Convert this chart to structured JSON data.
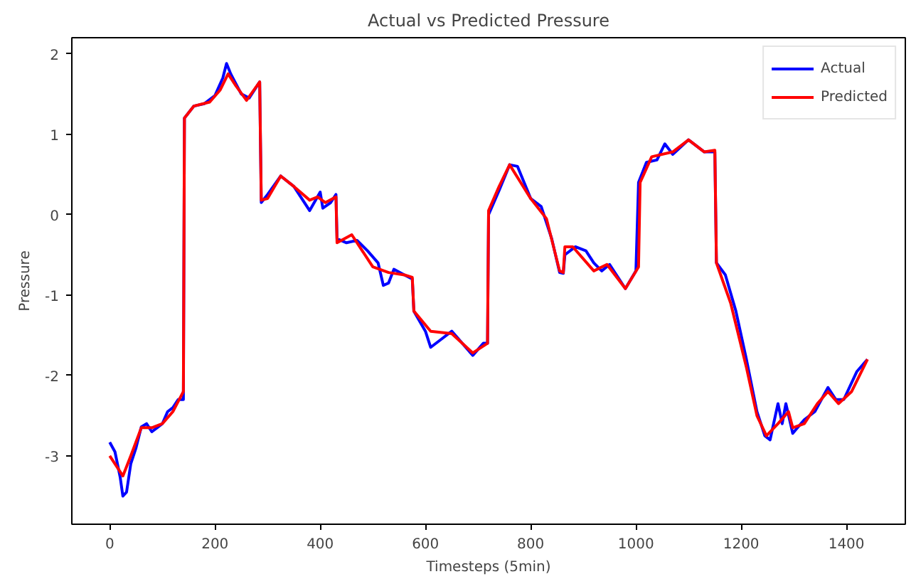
{
  "chart_data": {
    "type": "line",
    "title": "Actual vs Predicted Pressure",
    "xlabel": "Timesteps (5min)",
    "ylabel": "Pressure",
    "xlim": [
      -72,
      1512
    ],
    "ylim": [
      -3.85,
      2.2
    ],
    "xticks": [
      0,
      200,
      400,
      600,
      800,
      1000,
      1200,
      1400
    ],
    "yticks": [
      -3,
      -2,
      -1,
      0,
      1,
      2
    ],
    "grid": false,
    "legend": "top right",
    "line_style": "solid",
    "series": [
      {
        "name": "Actual",
        "color": "#0000ff",
        "x": [
          0,
          10,
          20,
          25,
          32,
          40,
          50,
          60,
          70,
          80,
          90,
          100,
          110,
          120,
          130,
          140,
          142,
          160,
          180,
          200,
          215,
          222,
          230,
          250,
          265,
          285,
          288,
          300,
          325,
          350,
          380,
          400,
          405,
          420,
          430,
          432,
          450,
          470,
          490,
          510,
          520,
          530,
          540,
          560,
          575,
          578,
          600,
          610,
          630,
          650,
          670,
          690,
          710,
          718,
          720,
          740,
          760,
          775,
          800,
          820,
          840,
          855,
          862,
          865,
          885,
          905,
          920,
          935,
          950,
          980,
          1000,
          1005,
          1020,
          1040,
          1055,
          1070,
          1100,
          1130,
          1150,
          1153,
          1170,
          1190,
          1210,
          1230,
          1245,
          1255,
          1270,
          1278,
          1285,
          1298,
          1320,
          1340,
          1365,
          1380,
          1395,
          1420,
          1440
        ],
        "values": [
          -2.83,
          -2.95,
          -3.27,
          -3.5,
          -3.45,
          -3.1,
          -2.9,
          -2.64,
          -2.6,
          -2.7,
          -2.65,
          -2.6,
          -2.45,
          -2.4,
          -2.3,
          -2.3,
          1.2,
          1.35,
          1.38,
          1.48,
          1.7,
          1.88,
          1.75,
          1.5,
          1.45,
          1.65,
          0.15,
          0.25,
          0.48,
          0.35,
          0.05,
          0.28,
          0.08,
          0.15,
          0.25,
          -0.3,
          -0.35,
          -0.32,
          -0.45,
          -0.6,
          -0.88,
          -0.85,
          -0.68,
          -0.75,
          -0.8,
          -1.2,
          -1.45,
          -1.65,
          -1.55,
          -1.45,
          -1.6,
          -1.75,
          -1.6,
          -1.6,
          0.0,
          0.3,
          0.62,
          0.6,
          0.2,
          0.1,
          -0.3,
          -0.72,
          -0.73,
          -0.5,
          -0.4,
          -0.45,
          -0.6,
          -0.7,
          -0.62,
          -0.92,
          -0.7,
          0.4,
          0.65,
          0.68,
          0.88,
          0.75,
          0.93,
          0.78,
          0.78,
          -0.6,
          -0.75,
          -1.2,
          -1.8,
          -2.45,
          -2.75,
          -2.8,
          -2.35,
          -2.6,
          -2.35,
          -2.72,
          -2.55,
          -2.45,
          -2.15,
          -2.3,
          -2.3,
          -1.95,
          -1.8
        ]
      },
      {
        "name": "Predicted",
        "color": "#ff0000",
        "x": [
          0,
          10,
          25,
          40,
          60,
          80,
          100,
          120,
          140,
          142,
          160,
          190,
          210,
          225,
          240,
          260,
          285,
          288,
          300,
          325,
          350,
          380,
          395,
          410,
          430,
          432,
          460,
          480,
          500,
          530,
          560,
          575,
          578,
          610,
          650,
          690,
          718,
          720,
          740,
          760,
          800,
          830,
          855,
          862,
          865,
          880,
          920,
          945,
          980,
          1005,
          1008,
          1030,
          1070,
          1100,
          1130,
          1150,
          1153,
          1180,
          1210,
          1230,
          1248,
          1270,
          1290,
          1298,
          1320,
          1345,
          1365,
          1385,
          1410,
          1440
        ],
        "values": [
          -3.0,
          -3.1,
          -3.25,
          -3.0,
          -2.65,
          -2.65,
          -2.6,
          -2.45,
          -2.2,
          1.2,
          1.35,
          1.4,
          1.55,
          1.75,
          1.6,
          1.42,
          1.65,
          0.18,
          0.2,
          0.48,
          0.35,
          0.18,
          0.22,
          0.15,
          0.22,
          -0.35,
          -0.25,
          -0.45,
          -0.65,
          -0.72,
          -0.75,
          -0.78,
          -1.2,
          -1.45,
          -1.48,
          -1.72,
          -1.6,
          0.05,
          0.35,
          0.62,
          0.2,
          -0.05,
          -0.7,
          -0.72,
          -0.4,
          -0.4,
          -0.7,
          -0.62,
          -0.92,
          -0.65,
          0.4,
          0.72,
          0.78,
          0.93,
          0.78,
          0.8,
          -0.6,
          -1.1,
          -1.9,
          -2.5,
          -2.75,
          -2.6,
          -2.45,
          -2.65,
          -2.6,
          -2.35,
          -2.2,
          -2.35,
          -2.2,
          -1.8
        ]
      }
    ]
  }
}
